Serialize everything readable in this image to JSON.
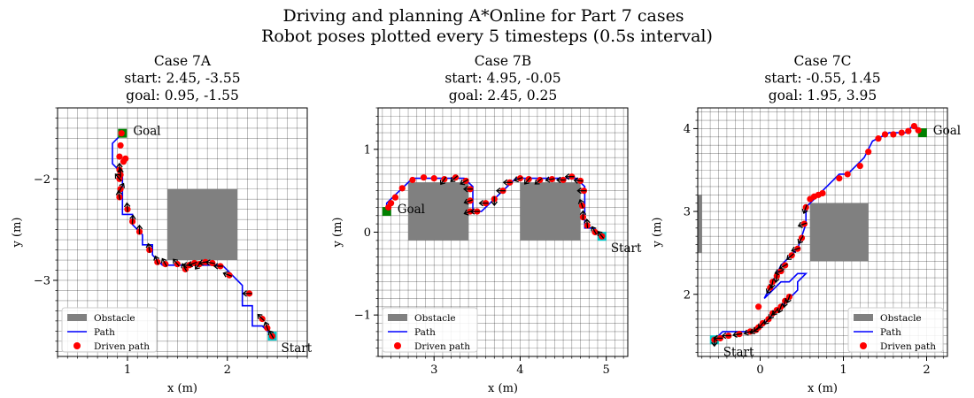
{
  "figure": {
    "title_line1": "Driving and planning A*Online for Part 7 cases",
    "title_line2": "Robot poses plotted every 5 timesteps (0.5s interval)"
  },
  "colors": {
    "obstacle": "#808080",
    "path": "#0000ff",
    "driven": "#ff0000",
    "goal": "#008000",
    "start": "#00cccc",
    "heading": "#000000",
    "grid": "#000000"
  },
  "legend": {
    "obstacle": "Obstacle",
    "path": "Path",
    "driven": "Driven path"
  },
  "chart_data": [
    {
      "type": "scatter",
      "title": [
        "Case 7A",
        "start: 2.45, -3.55",
        "goal: 0.95, -1.55"
      ],
      "xlabel": "x (m)",
      "ylabel": "y (m)",
      "xlim": [
        0.3,
        2.8
      ],
      "ylim": [
        -3.75,
        -1.3
      ],
      "xticks": [
        1,
        2
      ],
      "yticks": [
        -3,
        -2
      ],
      "grid": true,
      "grid_step": 0.1,
      "legend_position": "lower-left",
      "start": [
        2.45,
        -3.55
      ],
      "goal": [
        0.95,
        -1.55
      ],
      "start_label": "Start",
      "goal_label": "Goal",
      "obstacles": [
        [
          1.4,
          -2.8,
          2.1,
          -2.1
        ]
      ],
      "path": [
        [
          2.45,
          -3.55
        ],
        [
          2.35,
          -3.45
        ],
        [
          2.25,
          -3.45
        ],
        [
          2.25,
          -3.25
        ],
        [
          2.15,
          -3.25
        ],
        [
          2.15,
          -3.05
        ],
        [
          2.05,
          -2.95
        ],
        [
          1.95,
          -2.85
        ],
        [
          1.35,
          -2.85
        ],
        [
          1.25,
          -2.75
        ],
        [
          1.25,
          -2.65
        ],
        [
          1.15,
          -2.65
        ],
        [
          1.15,
          -2.55
        ],
        [
          1.05,
          -2.45
        ],
        [
          1.05,
          -2.35
        ],
        [
          0.95,
          -2.35
        ],
        [
          0.95,
          -1.95
        ],
        [
          0.85,
          -1.85
        ],
        [
          0.85,
          -1.65
        ],
        [
          0.95,
          -1.55
        ]
      ],
      "driven": [
        [
          2.45,
          -3.55
        ],
        [
          2.4,
          -3.47
        ],
        [
          2.35,
          -3.38
        ],
        [
          2.22,
          -3.13
        ],
        [
          2.02,
          -2.95
        ],
        [
          1.93,
          -2.86
        ],
        [
          1.85,
          -2.83
        ],
        [
          1.78,
          -2.82
        ],
        [
          1.72,
          -2.84
        ],
        [
          1.67,
          -2.83
        ],
        [
          1.62,
          -2.85
        ],
        [
          1.58,
          -2.89
        ],
        [
          1.5,
          -2.84
        ],
        [
          1.38,
          -2.84
        ],
        [
          1.3,
          -2.82
        ],
        [
          1.22,
          -2.7
        ],
        [
          1.12,
          -2.52
        ],
        [
          1.05,
          -2.42
        ],
        [
          1.0,
          -2.3
        ],
        [
          0.92,
          -2.18
        ],
        [
          0.93,
          -2.1
        ],
        [
          0.92,
          -2.0
        ],
        [
          0.93,
          -1.96
        ],
        [
          0.92,
          -1.91
        ],
        [
          0.96,
          -1.83
        ],
        [
          0.98,
          -1.8
        ],
        [
          0.92,
          -1.78
        ],
        [
          0.93,
          -1.67
        ],
        [
          0.94,
          -1.55
        ]
      ],
      "headings_deg": [
        120,
        110,
        135,
        180,
        160,
        180,
        170,
        190,
        230,
        200,
        180,
        120,
        130,
        120,
        110,
        100,
        90,
        85,
        95,
        100,
        60,
        130,
        90,
        90
      ]
    },
    {
      "type": "scatter",
      "title": [
        "Case 7B",
        "start: 4.95, -0.05",
        "goal: 2.45, 0.25"
      ],
      "xlabel": "x (m)",
      "ylabel": "y (m)",
      "xlim": [
        2.35,
        5.25
      ],
      "ylim": [
        -1.5,
        1.5
      ],
      "xticks": [
        3,
        4,
        5
      ],
      "yticks": [
        -1,
        0,
        1
      ],
      "grid": true,
      "grid_step": 0.1,
      "legend_position": "lower-left",
      "start": [
        4.95,
        -0.05
      ],
      "goal": [
        2.45,
        0.25
      ],
      "start_label": "Start",
      "goal_label": "Goal",
      "obstacles": [
        [
          2.7,
          -0.1,
          3.4,
          0.6
        ],
        [
          4.0,
          -0.1,
          4.7,
          0.6
        ]
      ],
      "path": [
        [
          4.95,
          -0.05
        ],
        [
          4.85,
          0.05
        ],
        [
          4.75,
          0.05
        ],
        [
          4.75,
          0.55
        ],
        [
          4.65,
          0.65
        ],
        [
          3.95,
          0.65
        ],
        [
          3.85,
          0.55
        ],
        [
          3.75,
          0.45
        ],
        [
          3.65,
          0.35
        ],
        [
          3.55,
          0.25
        ],
        [
          3.45,
          0.25
        ],
        [
          3.45,
          0.55
        ],
        [
          3.35,
          0.65
        ],
        [
          2.75,
          0.65
        ],
        [
          2.65,
          0.55
        ],
        [
          2.55,
          0.45
        ],
        [
          2.45,
          0.35
        ],
        [
          2.45,
          0.25
        ]
      ],
      "driven": [
        [
          4.95,
          -0.05
        ],
        [
          4.87,
          0.0
        ],
        [
          4.78,
          0.08
        ],
        [
          4.73,
          0.18
        ],
        [
          4.72,
          0.32
        ],
        [
          4.74,
          0.5
        ],
        [
          4.7,
          0.62
        ],
        [
          4.6,
          0.67
        ],
        [
          4.5,
          0.63
        ],
        [
          4.37,
          0.64
        ],
        [
          4.23,
          0.63
        ],
        [
          4.1,
          0.64
        ],
        [
          4.0,
          0.65
        ],
        [
          3.88,
          0.6
        ],
        [
          3.8,
          0.5
        ],
        [
          3.7,
          0.4
        ],
        [
          3.6,
          0.35
        ],
        [
          3.5,
          0.25
        ],
        [
          3.42,
          0.25
        ],
        [
          3.42,
          0.38
        ],
        [
          3.42,
          0.52
        ],
        [
          3.37,
          0.62
        ],
        [
          3.25,
          0.66
        ],
        [
          3.12,
          0.64
        ],
        [
          3.0,
          0.65
        ],
        [
          2.88,
          0.66
        ],
        [
          2.75,
          0.63
        ],
        [
          2.63,
          0.53
        ],
        [
          2.55,
          0.42
        ],
        [
          2.5,
          0.35
        ],
        [
          2.47,
          0.3
        ]
      ],
      "headings_deg": [
        130,
        120,
        95,
        90,
        110,
        180,
        175,
        180,
        180,
        190,
        220,
        230,
        200,
        180,
        180,
        270,
        180,
        180,
        200,
        200,
        180,
        210,
        220,
        235
      ]
    },
    {
      "type": "scatter",
      "title": [
        "Case 7C",
        "start: -0.55, 1.45",
        "goal: 1.95, 3.95"
      ],
      "xlabel": "x (m)",
      "ylabel": "y (m)",
      "xlim": [
        -0.75,
        2.25
      ],
      "ylim": [
        1.25,
        4.25
      ],
      "xticks": [
        0,
        1,
        2
      ],
      "yticks": [
        2,
        3,
        4
      ],
      "grid": true,
      "grid_step": 0.1,
      "legend_position": "lower-right",
      "start": [
        -0.55,
        1.45
      ],
      "goal": [
        1.95,
        3.95
      ],
      "start_label": "Start",
      "goal_label": "Goal",
      "obstacles": [
        [
          -0.8,
          2.5,
          -0.7,
          3.2
        ],
        [
          0.6,
          2.4,
          1.3,
          3.1
        ]
      ],
      "path": [
        [
          -0.55,
          1.45
        ],
        [
          -0.45,
          1.55
        ],
        [
          -0.05,
          1.55
        ],
        [
          0.05,
          1.65
        ],
        [
          0.15,
          1.75
        ],
        [
          0.25,
          1.85
        ],
        [
          0.35,
          1.95
        ],
        [
          0.45,
          2.05
        ],
        [
          0.45,
          2.15
        ],
        [
          0.55,
          2.25
        ],
        [
          0.45,
          2.25
        ],
        [
          0.35,
          2.15
        ],
        [
          0.25,
          2.15
        ],
        [
          0.15,
          2.05
        ],
        [
          0.05,
          1.95
        ],
        [
          0.15,
          2.15
        ],
        [
          0.25,
          2.35
        ],
        [
          0.35,
          2.45
        ],
        [
          0.45,
          2.55
        ],
        [
          0.55,
          2.85
        ],
        [
          0.55,
          3.05
        ],
        [
          0.65,
          3.15
        ],
        [
          0.85,
          3.35
        ],
        [
          0.95,
          3.45
        ],
        [
          1.05,
          3.45
        ],
        [
          1.25,
          3.65
        ],
        [
          1.35,
          3.85
        ],
        [
          1.55,
          3.95
        ],
        [
          1.75,
          3.95
        ],
        [
          1.85,
          4.05
        ],
        [
          1.95,
          3.95
        ]
      ],
      "driven": [
        [
          -0.55,
          1.45
        ],
        [
          -0.48,
          1.47
        ],
        [
          -0.38,
          1.5
        ],
        [
          -0.25,
          1.52
        ],
        [
          -0.12,
          1.55
        ],
        [
          -0.05,
          1.57
        ],
        [
          -0.02,
          1.6
        ],
        [
          0.03,
          1.65
        ],
        [
          0.1,
          1.7
        ],
        [
          0.15,
          1.77
        ],
        [
          0.2,
          1.81
        ],
        [
          0.25,
          1.85
        ],
        [
          0.3,
          1.92
        ],
        [
          0.35,
          1.97
        ],
        [
          0.12,
          2.08
        ],
        [
          0.15,
          2.15
        ],
        [
          0.2,
          2.22
        ],
        [
          0.25,
          2.28
        ],
        [
          0.3,
          2.35
        ],
        [
          0.38,
          2.47
        ],
        [
          0.45,
          2.55
        ],
        [
          0.5,
          2.68
        ],
        [
          0.53,
          2.85
        ],
        [
          0.55,
          3.05
        ],
        [
          0.6,
          3.15
        ],
        [
          0.65,
          3.18
        ],
        [
          0.7,
          3.2
        ],
        [
          0.75,
          3.22
        ],
        [
          0.95,
          3.4
        ],
        [
          1.05,
          3.45
        ],
        [
          1.2,
          3.55
        ],
        [
          1.3,
          3.72
        ],
        [
          1.42,
          3.88
        ],
        [
          1.5,
          3.93
        ],
        [
          1.6,
          3.93
        ],
        [
          1.7,
          3.95
        ],
        [
          1.78,
          3.97
        ],
        [
          1.85,
          4.03
        ],
        [
          1.9,
          3.98
        ],
        [
          -0.02,
          1.85
        ]
      ],
      "headings_deg": [
        270,
        180,
        180,
        190,
        200,
        210,
        220,
        230,
        230,
        240,
        230,
        250,
        260,
        250,
        240,
        260,
        260,
        200,
        210,
        220,
        200,
        240,
        200,
        250
      ]
    }
  ]
}
